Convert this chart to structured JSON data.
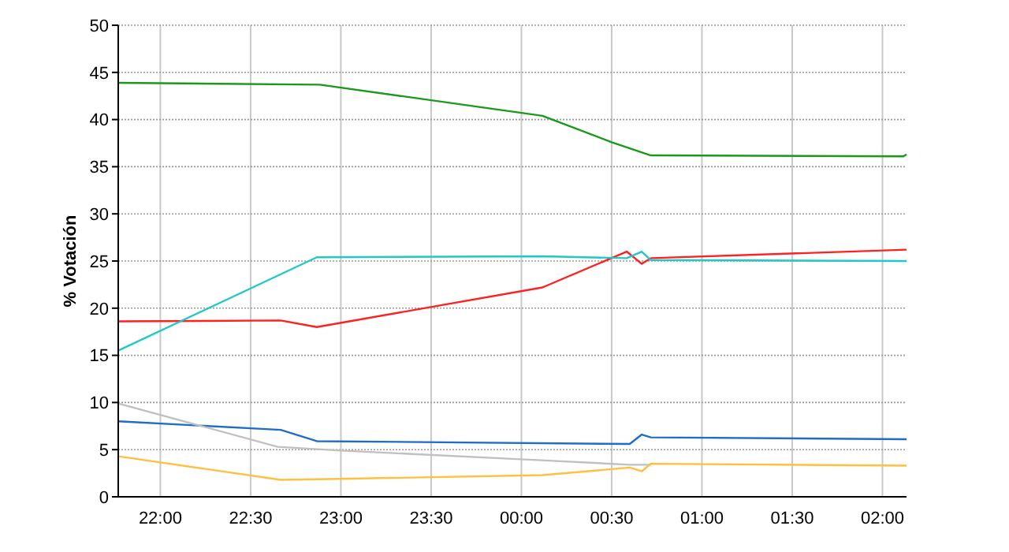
{
  "chart_data": {
    "type": "line",
    "ylabel": "% Votación",
    "xlim": [
      "2000-01-01T21:46",
      "2000-01-02T02:08"
    ],
    "ylim": [
      0,
      50
    ],
    "xticks": [
      {
        "value": "2000-01-01T22:00",
        "label": "22:00"
      },
      {
        "value": "2000-01-01T22:30",
        "label": "22:30"
      },
      {
        "value": "2000-01-01T23:00",
        "label": "23:00"
      },
      {
        "value": "2000-01-01T23:30",
        "label": "23:30"
      },
      {
        "value": "2000-01-02T00:00",
        "label": "00:00"
      },
      {
        "value": "2000-01-02T00:30",
        "label": "00:30"
      },
      {
        "value": "2000-01-02T01:00",
        "label": "01:00"
      },
      {
        "value": "2000-01-02T01:30",
        "label": "01:30"
      },
      {
        "value": "2000-01-02T02:00",
        "label": "02:00"
      }
    ],
    "yticks": [
      0,
      5,
      10,
      15,
      20,
      25,
      30,
      35,
      40,
      45,
      50
    ],
    "grid": true,
    "marker": "none",
    "line_style": "solid",
    "series": [
      {
        "color": "#1a9a1a",
        "x": [
          "2000-01-01T21:46",
          "2000-01-01T22:53",
          "2000-01-02T00:07",
          "2000-01-02T00:30",
          "2000-01-02T00:43",
          "2000-01-02T02:07",
          "2000-01-02T02:08"
        ],
        "values": [
          43.9,
          43.7,
          40.4,
          37.6,
          36.2,
          36.1,
          36.3
        ]
      },
      {
        "color": "#ff2020",
        "x": [
          "2000-01-01T21:46",
          "2000-01-01T22:40",
          "2000-01-01T22:52",
          "2000-01-02T00:07",
          "2000-01-02T00:35",
          "2000-01-02T00:40",
          "2000-01-02T00:43",
          "2000-01-02T02:08"
        ],
        "values": [
          18.6,
          18.7,
          18.0,
          22.2,
          26.0,
          24.7,
          25.3,
          26.2
        ]
      },
      {
        "color": "#20c8c8",
        "x": [
          "2000-01-01T21:46",
          "2000-01-01T22:52",
          "2000-01-02T00:07",
          "2000-01-02T00:35",
          "2000-01-02T00:40",
          "2000-01-02T00:43",
          "2000-01-02T02:08"
        ],
        "values": [
          15.5,
          25.4,
          25.5,
          25.3,
          26.0,
          25.1,
          25.0
        ]
      },
      {
        "color": "#1e6ec8",
        "x": [
          "2000-01-01T21:46",
          "2000-01-01T22:40",
          "2000-01-01T22:52",
          "2000-01-02T00:36",
          "2000-01-02T00:40",
          "2000-01-02T00:43",
          "2000-01-02T02:08"
        ],
        "values": [
          8.0,
          7.1,
          5.9,
          5.6,
          6.6,
          6.3,
          6.1
        ]
      },
      {
        "color": "#c0c0c0",
        "x": [
          "2000-01-01T21:46",
          "2000-01-01T22:39",
          "2000-01-01T23:00",
          "2000-01-02T00:05",
          "2000-01-02T00:36",
          "2000-01-02T00:43"
        ],
        "values": [
          9.9,
          5.3,
          4.9,
          3.9,
          3.4,
          3.4
        ]
      },
      {
        "color": "#ffc040",
        "x": [
          "2000-01-01T21:46",
          "2000-01-01T22:40",
          "2000-01-01T23:00",
          "2000-01-02T00:07",
          "2000-01-02T00:36",
          "2000-01-02T00:40",
          "2000-01-02T00:43",
          "2000-01-02T02:08"
        ],
        "values": [
          4.3,
          1.8,
          1.9,
          2.3,
          3.1,
          2.7,
          3.5,
          3.3
        ]
      }
    ]
  }
}
